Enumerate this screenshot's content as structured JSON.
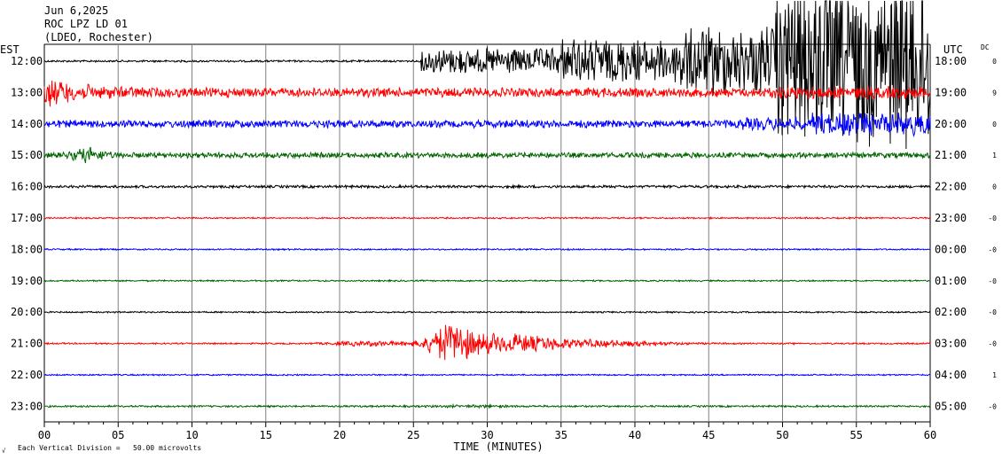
{
  "header": {
    "date": "Jun 6,2025",
    "station": "ROC LPZ LD 01",
    "network": "(LDEO, Rochester)"
  },
  "left_timezone": "EST",
  "right_timezone": "UTC",
  "dc_label": "DC",
  "footer": {
    "scale_note": "Each Vertical Division =   50.00 microvolts",
    "corner_mark": "√"
  },
  "chart_data": {
    "type": "line",
    "xlabel": "TIME (MINUTES)",
    "x_ticks": [
      "00",
      "05",
      "10",
      "15",
      "20",
      "25",
      "30",
      "35",
      "40",
      "45",
      "50",
      "55",
      "60"
    ],
    "xlim": [
      0,
      60
    ],
    "trace_colors": [
      "#000000",
      "#ff0000",
      "#0000ff",
      "#006400"
    ],
    "rows": [
      {
        "left": "12:00",
        "right": "18:00",
        "dc": "0"
      },
      {
        "left": "13:00",
        "right": "19:00",
        "dc": "9"
      },
      {
        "left": "14:00",
        "right": "20:00",
        "dc": "0"
      },
      {
        "left": "15:00",
        "right": "21:00",
        "dc": "1"
      },
      {
        "left": "16:00",
        "right": "22:00",
        "dc": "0"
      },
      {
        "left": "17:00",
        "right": "23:00",
        "dc": "-0"
      },
      {
        "left": "18:00",
        "right": "00:00",
        "dc": "-0"
      },
      {
        "left": "19:00",
        "right": "01:00",
        "dc": "-0"
      },
      {
        "left": "20:00",
        "right": "02:00",
        "dc": "-0"
      },
      {
        "left": "21:00",
        "right": "03:00",
        "dc": "-0"
      },
      {
        "left": "22:00",
        "right": "04:00",
        "dc": "1"
      },
      {
        "left": "23:00",
        "right": "05:00",
        "dc": "-0"
      }
    ]
  }
}
